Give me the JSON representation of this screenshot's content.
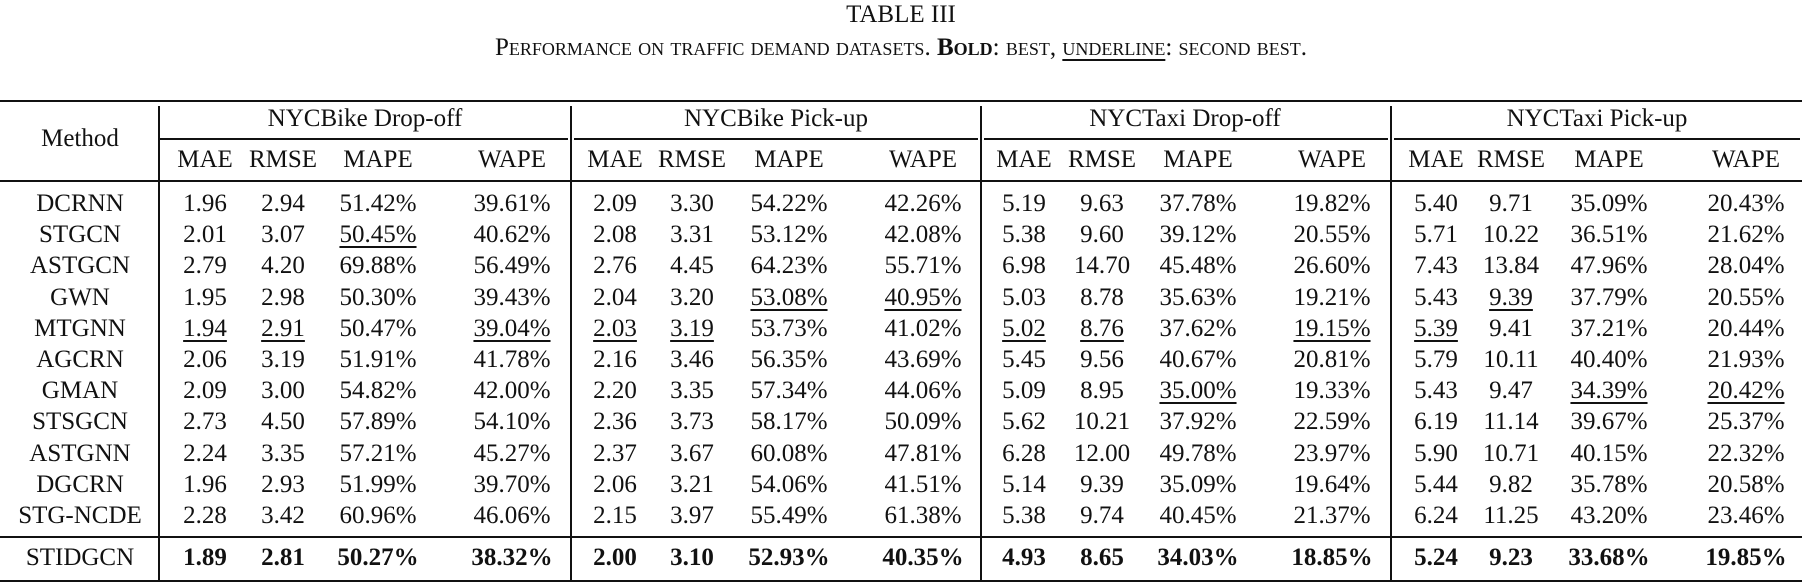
{
  "caption": {
    "title": "TABLE III",
    "sub_main": "Performance on traffic demand datasets. ",
    "bold_word": "Bold",
    "bold_rest": ": best, ",
    "underline_word": "underline",
    "underline_rest": ": second best."
  },
  "table": {
    "method_header": "Method",
    "groups": [
      "NYCBike Drop-off",
      "NYCBike Pick-up",
      "NYCTaxi Drop-off",
      "NYCTaxi Pick-up"
    ],
    "metrics": [
      "MAE",
      "RMSE",
      "MAPE",
      "WAPE"
    ],
    "rows": [
      {
        "method": "DCRNN",
        "values": [
          "1.96",
          "2.94",
          "51.42%",
          "39.61%",
          "2.09",
          "3.30",
          "54.22%",
          "42.26%",
          "5.19",
          "9.63",
          "37.78%",
          "19.82%",
          "5.40",
          "9.71",
          "35.09%",
          "20.43%"
        ],
        "underline": []
      },
      {
        "method": "STGCN",
        "values": [
          "2.01",
          "3.07",
          "50.45%",
          "40.62%",
          "2.08",
          "3.31",
          "53.12%",
          "42.08%",
          "5.38",
          "9.60",
          "39.12%",
          "20.55%",
          "5.71",
          "10.22",
          "36.51%",
          "21.62%"
        ],
        "underline": [
          2
        ]
      },
      {
        "method": "ASTGCN",
        "values": [
          "2.79",
          "4.20",
          "69.88%",
          "56.49%",
          "2.76",
          "4.45",
          "64.23%",
          "55.71%",
          "6.98",
          "14.70",
          "45.48%",
          "26.60%",
          "7.43",
          "13.84",
          "47.96%",
          "28.04%"
        ],
        "underline": []
      },
      {
        "method": "GWN",
        "values": [
          "1.95",
          "2.98",
          "50.30%",
          "39.43%",
          "2.04",
          "3.20",
          "53.08%",
          "40.95%",
          "5.03",
          "8.78",
          "35.63%",
          "19.21%",
          "5.43",
          "9.39",
          "37.79%",
          "20.55%"
        ],
        "underline": [
          6,
          7,
          13
        ]
      },
      {
        "method": "MTGNN",
        "values": [
          "1.94",
          "2.91",
          "50.47%",
          "39.04%",
          "2.03",
          "3.19",
          "53.73%",
          "41.02%",
          "5.02",
          "8.76",
          "37.62%",
          "19.15%",
          "5.39",
          "9.41",
          "37.21%",
          "20.44%"
        ],
        "underline": [
          0,
          1,
          3,
          4,
          5,
          8,
          9,
          11,
          12
        ]
      },
      {
        "method": "AGCRN",
        "values": [
          "2.06",
          "3.19",
          "51.91%",
          "41.78%",
          "2.16",
          "3.46",
          "56.35%",
          "43.69%",
          "5.45",
          "9.56",
          "40.67%",
          "20.81%",
          "5.79",
          "10.11",
          "40.40%",
          "21.93%"
        ],
        "underline": []
      },
      {
        "method": "GMAN",
        "values": [
          "2.09",
          "3.00",
          "54.82%",
          "42.00%",
          "2.20",
          "3.35",
          "57.34%",
          "44.06%",
          "5.09",
          "8.95",
          "35.00%",
          "19.33%",
          "5.43",
          "9.47",
          "34.39%",
          "20.42%"
        ],
        "underline": [
          10,
          14,
          15
        ]
      },
      {
        "method": "STSGCN",
        "values": [
          "2.73",
          "4.50",
          "57.89%",
          "54.10%",
          "2.36",
          "3.73",
          "58.17%",
          "50.09%",
          "5.62",
          "10.21",
          "37.92%",
          "22.59%",
          "6.19",
          "11.14",
          "39.67%",
          "25.37%"
        ],
        "underline": []
      },
      {
        "method": "ASTGNN",
        "values": [
          "2.24",
          "3.35",
          "57.21%",
          "45.27%",
          "2.37",
          "3.67",
          "60.08%",
          "47.81%",
          "6.28",
          "12.00",
          "49.78%",
          "23.97%",
          "5.90",
          "10.71",
          "40.15%",
          "22.32%"
        ],
        "underline": []
      },
      {
        "method": "DGCRN",
        "values": [
          "1.96",
          "2.93",
          "51.99%",
          "39.70%",
          "2.06",
          "3.21",
          "54.06%",
          "41.51%",
          "5.14",
          "9.39",
          "35.09%",
          "19.64%",
          "5.44",
          "9.82",
          "35.78%",
          "20.58%"
        ],
        "underline": []
      },
      {
        "method": "STG-NCDE",
        "values": [
          "2.28",
          "3.42",
          "60.96%",
          "46.06%",
          "2.15",
          "3.97",
          "55.49%",
          "61.38%",
          "5.38",
          "9.74",
          "40.45%",
          "21.37%",
          "6.24",
          "11.25",
          "43.20%",
          "23.46%"
        ],
        "underline": []
      }
    ],
    "final_row": {
      "method": "STIDGCN",
      "values": [
        "1.89",
        "2.81",
        "50.27%",
        "38.32%",
        "2.00",
        "3.10",
        "52.93%",
        "40.35%",
        "4.93",
        "8.65",
        "34.03%",
        "18.85%",
        "5.24",
        "9.23",
        "33.68%",
        "19.85%"
      ]
    }
  }
}
